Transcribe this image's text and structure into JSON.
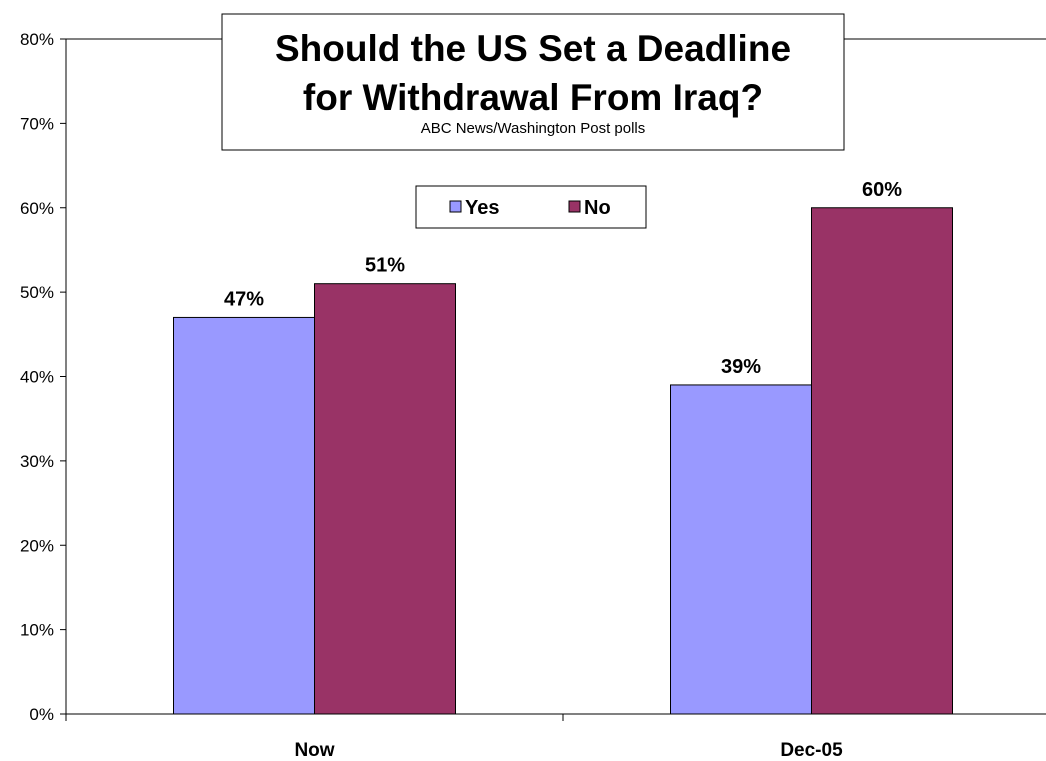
{
  "chart_data": {
    "type": "bar",
    "title_line1": "Should the US Set a Deadline",
    "title_line2": "for Withdrawal From Iraq?",
    "subtitle": "ABC News/Washington Post polls",
    "categories": [
      "Now",
      "Dec-05"
    ],
    "series": [
      {
        "name": "Yes",
        "values": [
          47,
          39
        ],
        "labels": [
          "47%",
          "39%"
        ],
        "color": "#9999ff"
      },
      {
        "name": "No",
        "values": [
          51,
          60
        ],
        "labels": [
          "51%",
          "60%"
        ],
        "color": "#993366"
      }
    ],
    "ylim": [
      0,
      80
    ],
    "yticks": [
      {
        "value": 0,
        "label": "0%"
      },
      {
        "value": 10,
        "label": "10%"
      },
      {
        "value": 20,
        "label": "20%"
      },
      {
        "value": 30,
        "label": "30%"
      },
      {
        "value": 40,
        "label": "40%"
      },
      {
        "value": 50,
        "label": "50%"
      },
      {
        "value": 60,
        "label": "60%"
      },
      {
        "value": 70,
        "label": "70%"
      },
      {
        "value": 80,
        "label": "80%"
      }
    ],
    "grid": false,
    "legend_position": "top-center"
  }
}
